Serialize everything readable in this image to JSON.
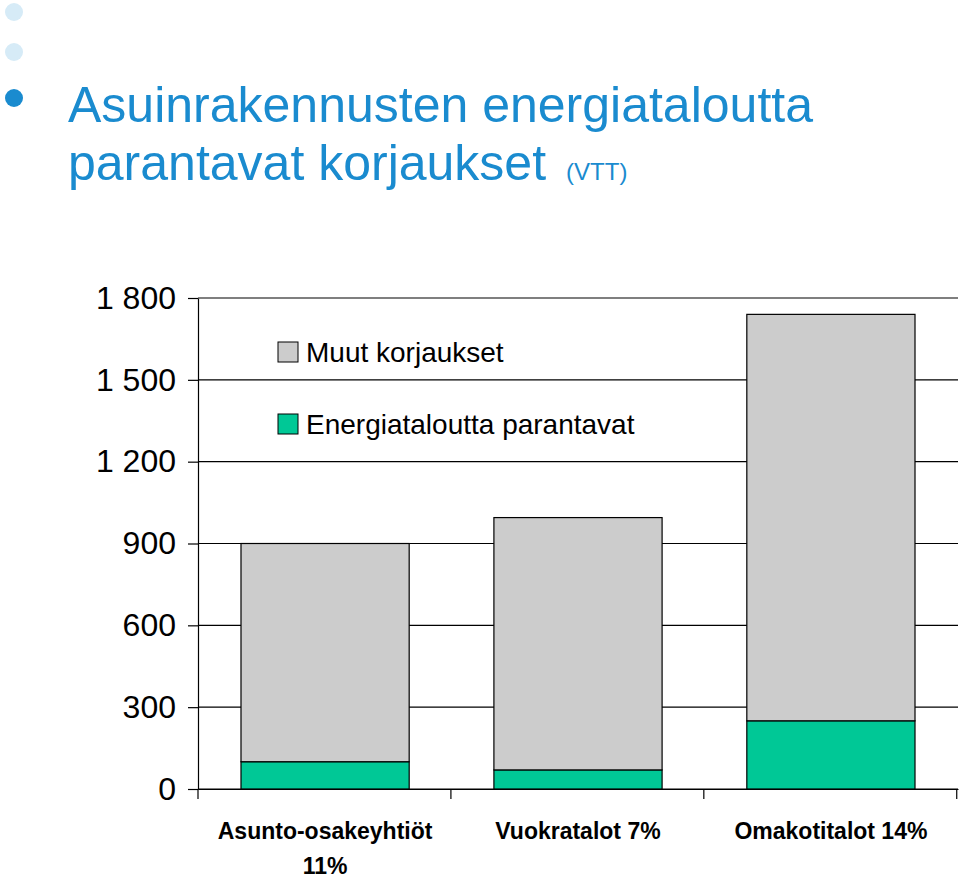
{
  "chart_data": {
    "type": "bar",
    "title": "Asuinrakennusten energiataloutta parantavat korjaukset",
    "subtitle": "(VTT)",
    "categories": [
      "Asunto-osakeyhtiöt 11%",
      "Vuokratalot 7%",
      "Omakotitalot 14%"
    ],
    "series": [
      {
        "name": "Energiataloutta parantavat",
        "color": "#00c896",
        "values": [
          100,
          70,
          250
        ]
      },
      {
        "name": "Muut korjaukset",
        "color": "#cccccc",
        "values": [
          800,
          925,
          1490
        ]
      }
    ],
    "stacked": true,
    "ylim": [
      0,
      1800
    ],
    "yticks": [
      0,
      300,
      600,
      900,
      {
        "value": 1200,
        "label": "1 200"
      },
      {
        "value": 1500,
        "label": "1 500"
      },
      {
        "value": 1800,
        "label": "1 800"
      }
    ],
    "grid": true,
    "legend": "upper left"
  }
}
